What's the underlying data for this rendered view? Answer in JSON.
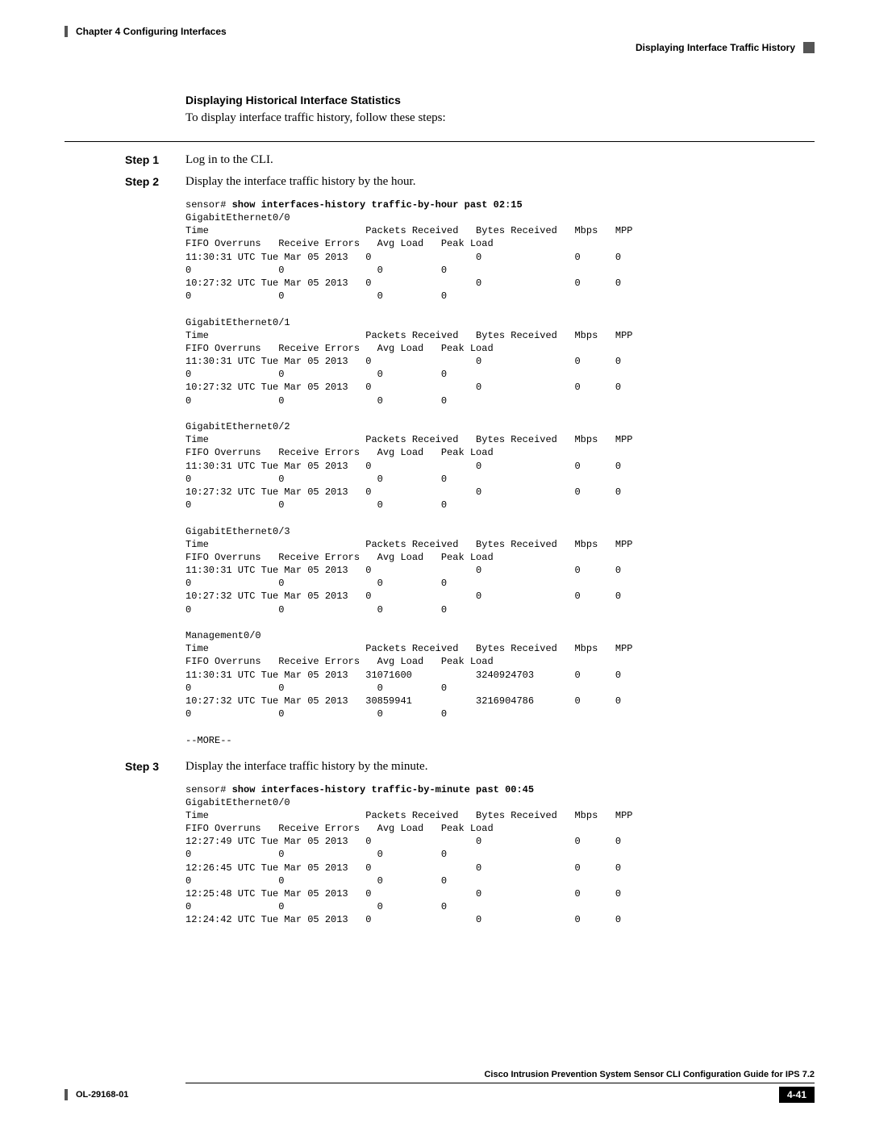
{
  "header": {
    "chapter": "Chapter 4    Configuring Interfaces",
    "section": "Displaying Interface Traffic History"
  },
  "subheading": "Displaying Historical Interface Statistics",
  "intro": "To display interface traffic history, follow these steps:",
  "steps": {
    "step1": {
      "label": "Step 1",
      "text": "Log in to the CLI."
    },
    "step2": {
      "label": "Step 2",
      "text": "Display the interface traffic history by the hour."
    },
    "step3": {
      "label": "Step 3",
      "text": "Display the interface traffic history by the minute."
    }
  },
  "cli1": {
    "prompt": "sensor# ",
    "command": "show interfaces-history traffic-by-hour past 02:15",
    "output": "GigabitEthernet0/0\nTime                           Packets Received   Bytes Received   Mbps   MPP   \nFIFO Overruns   Receive Errors   Avg Load   Peak Load\n11:30:31 UTC Tue Mar 05 2013   0                  0                0      0     \n0               0                0          0\n10:27:32 UTC Tue Mar 05 2013   0                  0                0      0     \n0               0                0          0\n\nGigabitEthernet0/1\nTime                           Packets Received   Bytes Received   Mbps   MPP   \nFIFO Overruns   Receive Errors   Avg Load   Peak Load\n11:30:31 UTC Tue Mar 05 2013   0                  0                0      0     \n0               0                0          0\n10:27:32 UTC Tue Mar 05 2013   0                  0                0      0     \n0               0                0          0\n\nGigabitEthernet0/2\nTime                           Packets Received   Bytes Received   Mbps   MPP   \nFIFO Overruns   Receive Errors   Avg Load   Peak Load\n11:30:31 UTC Tue Mar 05 2013   0                  0                0      0     \n0               0                0          0\n10:27:32 UTC Tue Mar 05 2013   0                  0                0      0     \n0               0                0          0\n\nGigabitEthernet0/3\nTime                           Packets Received   Bytes Received   Mbps   MPP   \nFIFO Overruns   Receive Errors   Avg Load   Peak Load\n11:30:31 UTC Tue Mar 05 2013   0                  0                0      0     \n0               0                0          0\n10:27:32 UTC Tue Mar 05 2013   0                  0                0      0     \n0               0                0          0\n\nManagement0/0\nTime                           Packets Received   Bytes Received   Mbps   MPP   \nFIFO Overruns   Receive Errors   Avg Load   Peak Load\n11:30:31 UTC Tue Mar 05 2013   31071600           3240924703       0      0     \n0               0                0          0\n10:27:32 UTC Tue Mar 05 2013   30859941           3216904786       0      0     \n0               0                0          0\n\n--MORE--"
  },
  "cli2": {
    "prompt": "sensor# ",
    "command": "show interfaces-history traffic-by-minute past 00:45",
    "output": "GigabitEthernet0/0\nTime                           Packets Received   Bytes Received   Mbps   MPP   \nFIFO Overruns   Receive Errors   Avg Load   Peak Load\n12:27:49 UTC Tue Mar 05 2013   0                  0                0      0     \n0               0                0          0\n12:26:45 UTC Tue Mar 05 2013   0                  0                0      0     \n0               0                0          0\n12:25:48 UTC Tue Mar 05 2013   0                  0                0      0     \n0               0                0          0\n12:24:42 UTC Tue Mar 05 2013   0                  0                0      0     "
  },
  "footer": {
    "guide": "Cisco Intrusion Prevention System Sensor CLI Configuration Guide for IPS 7.2",
    "docid": "OL-29168-01",
    "page": "4-41"
  }
}
